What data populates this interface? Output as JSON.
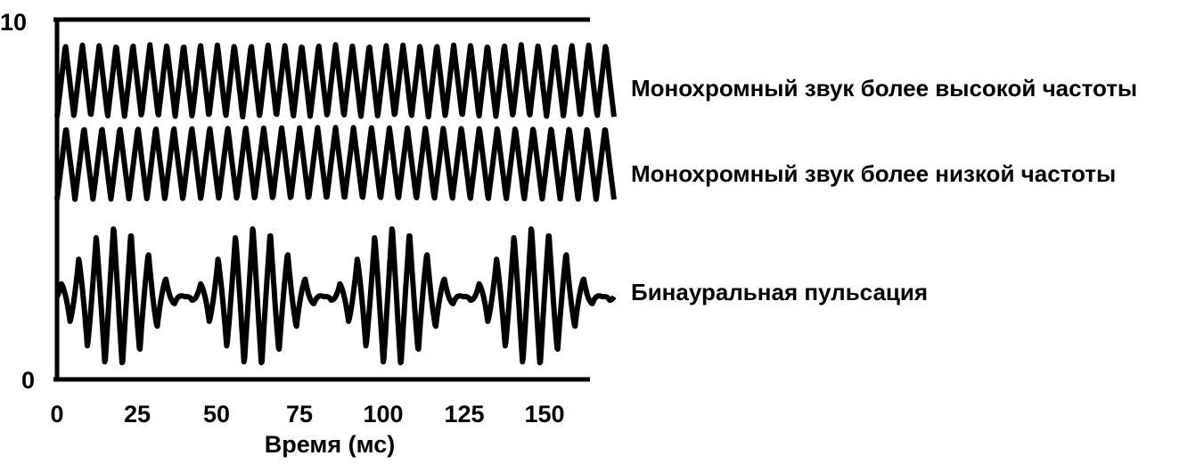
{
  "chart_data": {
    "type": "line",
    "title": "",
    "xlabel": "Время (мс)",
    "ylabel": "",
    "xlim": [
      0,
      170
    ],
    "ylim": [
      0,
      10
    ],
    "x_ticks": [
      "0",
      "25",
      "50",
      "75",
      "100",
      "125",
      "150"
    ],
    "y_ticks": [
      "0",
      "10"
    ],
    "grid": false,
    "series": [
      {
        "name": "Монохромный звук более высокой частоты",
        "center": 8.3,
        "amplitude": 1.0,
        "cycles": 33,
        "color": "#000000"
      },
      {
        "name": "Монохромный звук более низкой частоты",
        "center": 6.0,
        "amplitude": 1.0,
        "cycles": 31,
        "color": "#000000"
      },
      {
        "name": "Бинауральная пульсация",
        "center": 2.3,
        "amplitude": 2.0,
        "cycles": 32,
        "beats": 4,
        "color": "#000000"
      }
    ]
  }
}
